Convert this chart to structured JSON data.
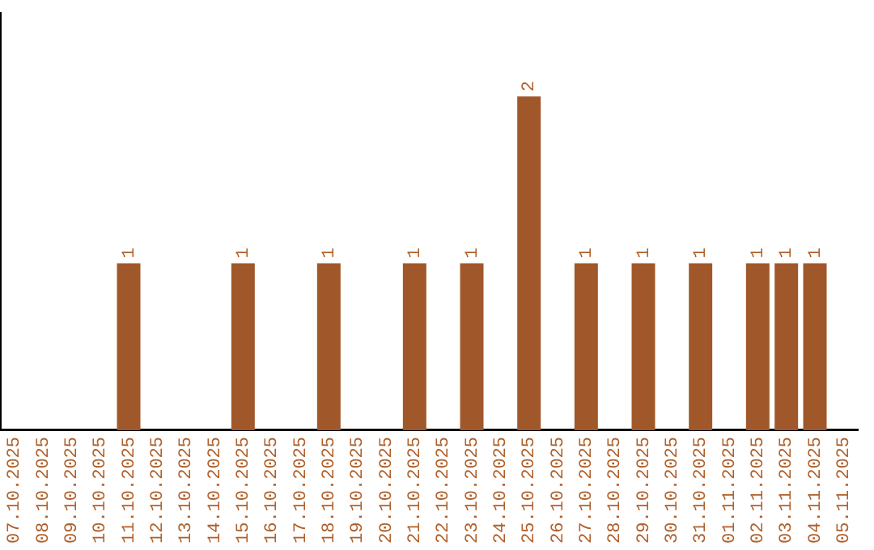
{
  "chart_data": {
    "type": "bar",
    "categories": [
      "07.10.2025",
      "08.10.2025",
      "09.10.2025",
      "10.10.2025",
      "11.10.2025",
      "12.10.2025",
      "13.10.2025",
      "14.10.2025",
      "15.10.2025",
      "16.10.2025",
      "17.10.2025",
      "18.10.2025",
      "19.10.2025",
      "20.10.2025",
      "21.10.2025",
      "22.10.2025",
      "23.10.2025",
      "24.10.2025",
      "25.10.2025",
      "26.10.2025",
      "27.10.2025",
      "28.10.2025",
      "29.10.2025",
      "30.10.2025",
      "31.10.2025",
      "01.11.2025",
      "02.11.2025",
      "03.11.2025",
      "04.11.2025",
      "05.11.2025"
    ],
    "values": [
      0,
      0,
      0,
      0,
      1,
      0,
      0,
      0,
      1,
      0,
      0,
      1,
      0,
      0,
      1,
      0,
      1,
      0,
      2,
      0,
      1,
      0,
      1,
      0,
      1,
      0,
      1,
      1,
      1,
      0
    ],
    "value_labels": [
      null,
      null,
      null,
      null,
      "1",
      null,
      null,
      null,
      "1",
      null,
      null,
      "1",
      null,
      null,
      "1",
      null,
      "1",
      null,
      "2",
      null,
      "1",
      null,
      "1",
      null,
      "1",
      null,
      "1",
      "1",
      "1",
      null
    ],
    "color": "#a0582a",
    "tick_labels": "x",
    "grid": false,
    "legend": false
  }
}
